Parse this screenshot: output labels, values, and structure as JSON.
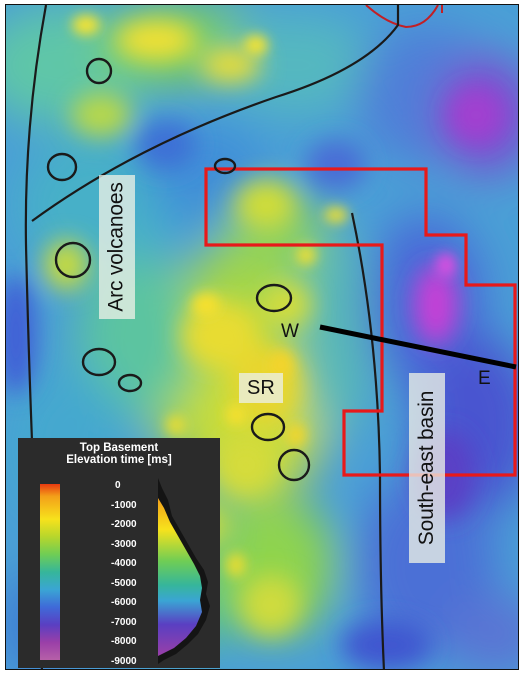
{
  "map": {
    "labels": {
      "arc_volcanoes": "Arc volcanoes",
      "south_east_basin": "South-east basin",
      "sr": "SR",
      "w": "W",
      "e": "E"
    },
    "colors": {
      "outline_red": "#e8191a",
      "structure_line": "#1a1a1a",
      "profile_line": "#000000",
      "background_blue": "#4a9fd6"
    }
  },
  "legend": {
    "title_line1": "Top Basement",
    "title_line2": "Elevation time [ms]",
    "ticks": [
      "0",
      "-1000",
      "-2000",
      "-3000",
      "-4000",
      "-5000",
      "-6000",
      "-7000",
      "-8000",
      "-9000"
    ],
    "range": [
      0,
      -9000
    ],
    "colors": [
      "#e83a10",
      "#f3a019",
      "#f7e21c",
      "#b7d62c",
      "#6fcd55",
      "#36b69a",
      "#3aa5d4",
      "#3f6ad8",
      "#5a3fc2",
      "#9a3fa8",
      "#b660a8"
    ]
  }
}
